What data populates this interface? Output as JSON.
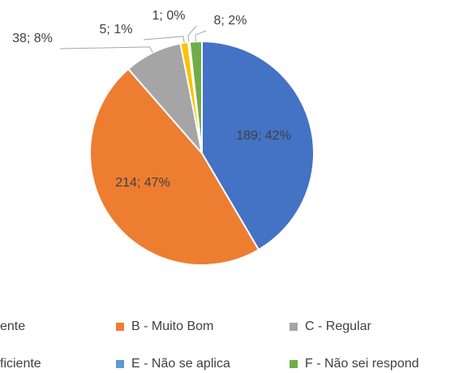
{
  "chart_data": {
    "type": "pie",
    "categories": [
      "ente",
      "B - Muito Bom",
      "C - Regular",
      "ficiente",
      "E - Não se aplica",
      "F - Não sei respond"
    ],
    "values": [
      189,
      214,
      38,
      5,
      1,
      8
    ],
    "value_labels": [
      "189; 42%",
      "214; 47%",
      "38; 8%",
      "5; 1%",
      "1; 0%",
      "8; 2%"
    ],
    "colors": [
      "#4472c4",
      "#ed7d31",
      "#a5a5a5",
      "#ffc000",
      "#5b9bd5",
      "#70ad47"
    ],
    "legend": "bottom"
  }
}
